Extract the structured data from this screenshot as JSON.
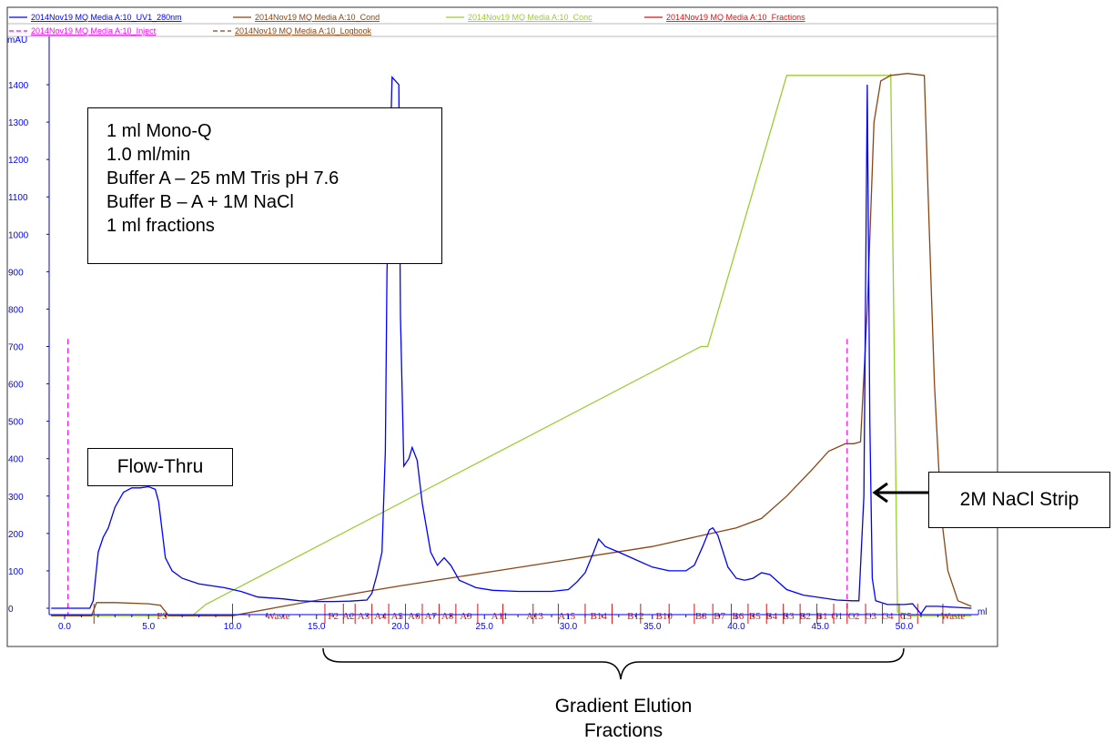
{
  "legend": {
    "row1": [
      {
        "label": "2014Nov19 MQ Media A:10_UV1_280nm",
        "color": "#0000ff",
        "dash": "solid"
      },
      {
        "label": "2014Nov19 MQ Media A:10_Cond",
        "color": "#8b4513",
        "dash": "solid"
      },
      {
        "label": "2014Nov19 MQ Media A:10_Conc",
        "color": "#9acd32",
        "dash": "solid"
      },
      {
        "label": "2014Nov19 MQ Media A:10_Fractions",
        "color": "#e01010",
        "dash": "solid"
      }
    ],
    "row2": [
      {
        "label": "2014Nov19 MQ Media A:10_Inject",
        "color": "#ff00ff",
        "dash": "dashed"
      },
      {
        "label": "2014Nov19 MQ Media A:10_Logbook",
        "color": "#8b4513",
        "dash": "dashed"
      }
    ]
  },
  "annotations": {
    "method_lines": [
      "1 ml Mono-Q",
      "1.0 ml/min",
      "Buffer A – 25 mM Tris pH 7.6",
      "Buffer B – A + 1M NaCl",
      "1 ml fractions"
    ],
    "flow_thru": "Flow-Thru",
    "strip": "2M NaCl Strip",
    "gradient_line1": "Gradient Elution",
    "gradient_line2": "Fractions"
  },
  "chart_data": {
    "type": "line",
    "xlabel": "ml",
    "ylabel": "mAU",
    "xlim": [
      -0.8,
      54.3
    ],
    "ylim": [
      -20,
      1480
    ],
    "x_ticks": [
      0.0,
      5.0,
      10.0,
      15.0,
      20.0,
      25.0,
      30.0,
      35.0,
      40.0,
      45.0,
      50.0
    ],
    "x_tick_labels": [
      "0.0",
      "5.0",
      "10.0",
      "15.0",
      "20.0",
      "25.0",
      "30.0",
      "35.0",
      "40.0",
      "45.0",
      "50.0"
    ],
    "y_ticks": [
      0,
      100,
      200,
      300,
      400,
      500,
      600,
      700,
      800,
      900,
      1000,
      1100,
      1200,
      1300,
      1400
    ],
    "y_tick_labels": [
      "0",
      "100",
      "200",
      "300",
      "400",
      "500",
      "600",
      "700",
      "800",
      "900",
      "1000",
      "1100",
      "1200",
      "1300",
      "1400"
    ],
    "series": [
      {
        "name": "2014Nov19 MQ Media A:10_UV1_280nm",
        "color": "#0000ff",
        "points": [
          [
            -0.8,
            0
          ],
          [
            1.5,
            0
          ],
          [
            1.7,
            20
          ],
          [
            2.0,
            150
          ],
          [
            2.3,
            190
          ],
          [
            2.6,
            215
          ],
          [
            3.0,
            270
          ],
          [
            3.5,
            310
          ],
          [
            4.0,
            322
          ],
          [
            4.5,
            322
          ],
          [
            5.0,
            325
          ],
          [
            5.4,
            318
          ],
          [
            5.6,
            285
          ],
          [
            5.8,
            210
          ],
          [
            6.0,
            135
          ],
          [
            6.4,
            100
          ],
          [
            7.0,
            80
          ],
          [
            8.0,
            65
          ],
          [
            9.5,
            55
          ],
          [
            10.5,
            45
          ],
          [
            11.5,
            30
          ],
          [
            13.0,
            25
          ],
          [
            14.0,
            20
          ],
          [
            15.0,
            18
          ],
          [
            16.0,
            18
          ],
          [
            17.0,
            19
          ],
          [
            18.0,
            22
          ],
          [
            18.3,
            40
          ],
          [
            18.6,
            90
          ],
          [
            18.9,
            150
          ],
          [
            19.1,
            420
          ],
          [
            19.2,
            900
          ],
          [
            19.5,
            1420
          ],
          [
            19.9,
            1400
          ],
          [
            20.0,
            780
          ],
          [
            20.2,
            380
          ],
          [
            20.5,
            400
          ],
          [
            20.7,
            430
          ],
          [
            21.0,
            395
          ],
          [
            21.3,
            280
          ],
          [
            21.8,
            150
          ],
          [
            22.2,
            115
          ],
          [
            22.6,
            135
          ],
          [
            23.0,
            115
          ],
          [
            23.5,
            75
          ],
          [
            24.5,
            55
          ],
          [
            25.5,
            48
          ],
          [
            27.0,
            45
          ],
          [
            29.0,
            45
          ],
          [
            30.0,
            50
          ],
          [
            30.5,
            70
          ],
          [
            31.0,
            95
          ],
          [
            31.5,
            150
          ],
          [
            31.8,
            185
          ],
          [
            32.2,
            165
          ],
          [
            33.0,
            150
          ],
          [
            34.0,
            130
          ],
          [
            35.0,
            110
          ],
          [
            36.0,
            100
          ],
          [
            37.0,
            100
          ],
          [
            37.5,
            115
          ],
          [
            38.0,
            165
          ],
          [
            38.4,
            210
          ],
          [
            38.6,
            215
          ],
          [
            38.9,
            195
          ],
          [
            39.5,
            110
          ],
          [
            40.0,
            80
          ],
          [
            40.5,
            75
          ],
          [
            41.0,
            80
          ],
          [
            41.5,
            95
          ],
          [
            42.0,
            90
          ],
          [
            43.0,
            50
          ],
          [
            44.0,
            35
          ],
          [
            46.0,
            22
          ],
          [
            46.9,
            20
          ],
          [
            47.3,
            20
          ],
          [
            47.6,
            300
          ],
          [
            47.8,
            1400
          ],
          [
            47.95,
            500
          ],
          [
            48.1,
            80
          ],
          [
            48.3,
            20
          ],
          [
            49.0,
            10
          ],
          [
            50.0,
            10
          ],
          [
            50.5,
            12
          ],
          [
            51.0,
            -15
          ],
          [
            51.3,
            5
          ],
          [
            52.0,
            5
          ],
          [
            54.0,
            0
          ]
        ]
      },
      {
        "name": "2014Nov19 MQ Media A:10_Cond",
        "color": "#8b4513",
        "points": [
          [
            -0.8,
            -20
          ],
          [
            1.6,
            -20
          ],
          [
            1.9,
            15
          ],
          [
            3.0,
            15
          ],
          [
            5.0,
            12
          ],
          [
            5.7,
            8
          ],
          [
            6.2,
            -20
          ],
          [
            9.5,
            -20
          ],
          [
            10.0,
            -20
          ],
          [
            13.0,
            5
          ],
          [
            18.0,
            45
          ],
          [
            20.0,
            60
          ],
          [
            25.0,
            95
          ],
          [
            30.0,
            130
          ],
          [
            35.0,
            165
          ],
          [
            38.0,
            195
          ],
          [
            40.0,
            215
          ],
          [
            41.5,
            240
          ],
          [
            43.0,
            300
          ],
          [
            44.5,
            370
          ],
          [
            45.5,
            420
          ],
          [
            46.5,
            440
          ],
          [
            47.0,
            440
          ],
          [
            47.4,
            445
          ],
          [
            47.8,
            800
          ],
          [
            48.2,
            1300
          ],
          [
            48.6,
            1410
          ],
          [
            49.2,
            1425
          ],
          [
            50.2,
            1430
          ],
          [
            51.2,
            1425
          ],
          [
            51.5,
            1000
          ],
          [
            51.8,
            600
          ],
          [
            52.2,
            250
          ],
          [
            52.6,
            100
          ],
          [
            53.2,
            20
          ],
          [
            54.0,
            5
          ]
        ]
      },
      {
        "name": "2014Nov19 MQ Media A:10_Conc",
        "color": "#9acd32",
        "points": [
          [
            -0.8,
            -20
          ],
          [
            7.6,
            -20
          ],
          [
            8.4,
            10
          ],
          [
            37.9,
            700
          ],
          [
            38.3,
            700
          ],
          [
            43.0,
            1425
          ],
          [
            49.2,
            1425
          ],
          [
            49.2,
            1430
          ],
          [
            49.6,
            -10
          ],
          [
            50.4,
            -20
          ],
          [
            54.0,
            -20
          ]
        ]
      }
    ],
    "inject_marks_ml": [
      0.2,
      46.6
    ],
    "fraction_boundaries_ml": [
      1.75,
      10.0,
      15.5,
      16.6,
      17.3,
      18.3,
      19.3,
      20.3,
      21.3,
      22.3,
      23.3,
      24.6,
      26.1,
      27.9,
      29.4,
      31.0,
      32.6,
      34.3,
      36.0,
      37.5,
      38.6,
      39.7,
      40.7,
      41.8,
      42.8,
      43.8,
      44.8,
      45.8,
      46.6,
      47.7,
      48.7,
      49.7,
      50.8,
      52.3
    ],
    "fractions": [
      {
        "label": "F3",
        "x": 5.8
      },
      {
        "label": "Waste",
        "x": 12.7
      },
      {
        "label": "F2",
        "x": 16.0
      },
      {
        "label": "A2",
        "x": 16.9
      },
      {
        "label": "A3",
        "x": 17.8
      },
      {
        "label": "A4",
        "x": 18.8
      },
      {
        "label": "A5",
        "x": 19.8
      },
      {
        "label": "A6",
        "x": 20.8
      },
      {
        "label": "A7",
        "x": 21.8
      },
      {
        "label": "A8",
        "x": 22.8
      },
      {
        "label": "A9",
        "x": 23.9
      },
      {
        "label": "A11",
        "x": 25.9
      },
      {
        "label": "A13",
        "x": 28.0
      },
      {
        "label": "A15",
        "x": 29.9
      },
      {
        "label": "B14",
        "x": 31.8
      },
      {
        "label": "B12",
        "x": 34.0
      },
      {
        "label": "B10",
        "x": 35.7
      },
      {
        "label": "B8",
        "x": 37.9
      },
      {
        "label": "B7",
        "x": 39.0
      },
      {
        "label": "B6",
        "x": 40.1
      },
      {
        "label": "B5",
        "x": 41.1
      },
      {
        "label": "B4",
        "x": 42.1
      },
      {
        "label": "B3",
        "x": 43.1
      },
      {
        "label": "B2",
        "x": 44.1
      },
      {
        "label": "B1",
        "x": 45.1
      },
      {
        "label": "C1",
        "x": 46.0
      },
      {
        "label": "C2",
        "x": 47.0
      },
      {
        "label": "C3",
        "x": 48.0
      },
      {
        "label": "C4",
        "x": 49.0
      },
      {
        "label": "C5",
        "x": 50.1
      },
      {
        "label": "Waste",
        "x": 52.9
      }
    ]
  }
}
